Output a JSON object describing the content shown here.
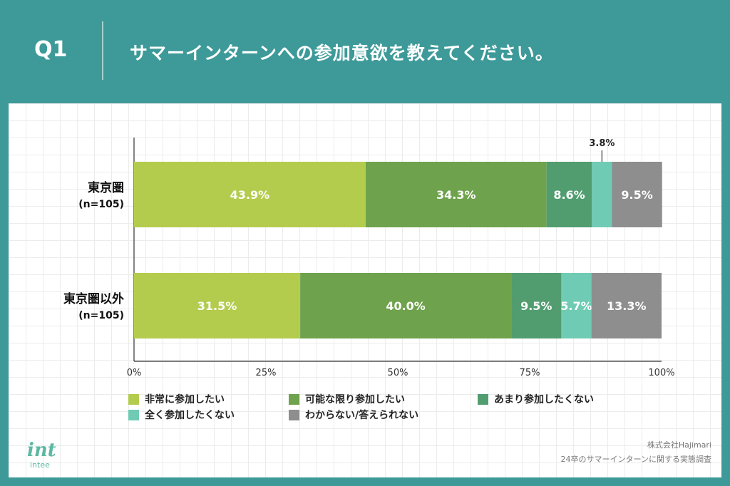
{
  "header": {
    "question": "Q1",
    "title": "サマーインターンへの参加意欲を教えてください。"
  },
  "chart_data": {
    "type": "bar",
    "orientation": "horizontal",
    "stacked": true,
    "categories": [
      {
        "name": "東京圏",
        "n": "(n=105)"
      },
      {
        "name": "東京圏以外",
        "n": "(n=105)"
      }
    ],
    "series": [
      {
        "name": "非常に参加したい",
        "color": "#b3cc4d",
        "values": [
          43.9,
          31.5
        ]
      },
      {
        "name": "可能な限り参加したい",
        "color": "#6ea24c",
        "values": [
          34.3,
          40.0
        ]
      },
      {
        "name": "あまり参加したくない",
        "color": "#519d70",
        "values": [
          8.6,
          9.5
        ]
      },
      {
        "name": "全く参加したくない",
        "color": "#6fcbb4",
        "values": [
          3.8,
          5.7
        ]
      },
      {
        "name": "わからない/答えられない",
        "color": "#8e8e8e",
        "values": [
          9.5,
          13.3
        ]
      }
    ],
    "xlim": [
      0,
      100
    ],
    "x_ticks": [
      "0%",
      "25%",
      "50%",
      "75%",
      "100%"
    ],
    "label_format": "%",
    "legend_position": "bottom"
  },
  "footer": {
    "logo_mark": "int",
    "logo_text": "intee",
    "company": "株式会社Hajimari",
    "survey": "24卒のサマーインターンに関する実態調査"
  }
}
